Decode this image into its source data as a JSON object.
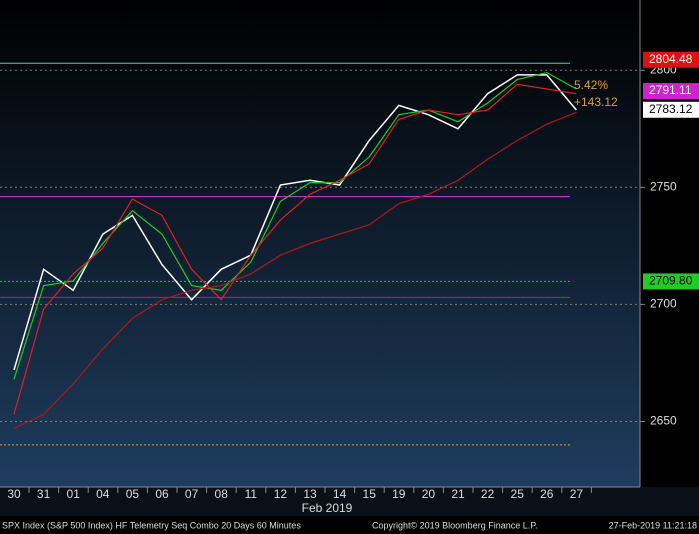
{
  "chart_data": {
    "type": "line",
    "title": "SPX Index (S&P 500 Index) HF Telemetry Seq Combo 20 Days 60 Minutes",
    "copyright": "Copyright© 2019 Bloomberg Finance L.P.",
    "timestamp": "27-Feb-2019 11:21:18",
    "month_label": "Feb 2019",
    "categories": [
      "30",
      "31",
      "01",
      "04",
      "05",
      "06",
      "07",
      "08",
      "11",
      "12",
      "13",
      "14",
      "15",
      "19",
      "20",
      "21",
      "22",
      "25",
      "26",
      "27"
    ],
    "series": [
      {
        "color": "#ffffff",
        "values": [
          2672,
          2715,
          2706,
          2730,
          2738,
          2717,
          2702,
          2715,
          2721,
          2751,
          2753,
          2751,
          2770,
          2785,
          2781,
          2775,
          2790,
          2798,
          2798,
          2783
        ]
      },
      {
        "color": "#22cc22",
        "values": [
          2668,
          2708,
          2710,
          2726,
          2740,
          2730,
          2708,
          2706,
          2718,
          2744,
          2752,
          2752,
          2763,
          2781,
          2783,
          2778,
          2786,
          2796,
          2799,
          2792
        ]
      },
      {
        "color": "#e02020",
        "values": [
          2653,
          2698,
          2713,
          2724,
          2745,
          2738,
          2715,
          2702,
          2721,
          2736,
          2747,
          2753,
          2760,
          2779,
          2783,
          2781,
          2783,
          2794,
          2792,
          2790
        ]
      },
      {
        "color": "#b01818",
        "values": [
          2647,
          2653,
          2666,
          2681,
          2694,
          2702,
          2706,
          2708,
          2713,
          2721,
          2726,
          2730,
          2734,
          2743,
          2747,
          2753,
          2762,
          2770,
          2777,
          2782
        ]
      }
    ],
    "levels": [
      {
        "value": 2803,
        "color": "#40d0d0"
      },
      {
        "value": 2746,
        "color": "#d040d0"
      },
      {
        "value": 2703,
        "color": "#e02020"
      },
      {
        "value": 2709.8,
        "color": "#22cc22"
      },
      {
        "value": 2640,
        "color": "#e0a020"
      }
    ],
    "price_labels": [
      {
        "value": 2804.48,
        "label": "2804.48",
        "color": "#e01010"
      },
      {
        "value": 2791.11,
        "label": "2791.11",
        "color": "#d020d0"
      },
      {
        "value": 2783.12,
        "label": "2783.12",
        "color": "#ffffff"
      },
      {
        "value": 2709.8,
        "label": "2709.80",
        "color": "#22cc22"
      }
    ],
    "annotations": [
      "5.42%",
      "+143.12"
    ],
    "ylim": [
      2622,
      2830
    ],
    "yticks": [
      2650,
      2700,
      2750,
      2800
    ],
    "grid": true
  }
}
